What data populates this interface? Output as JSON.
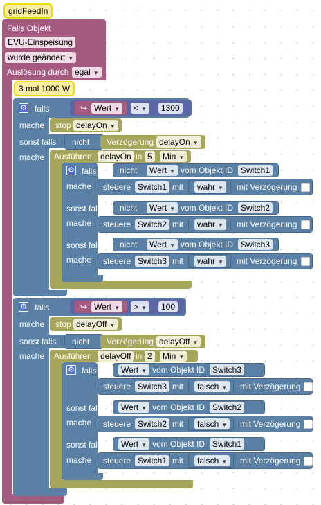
{
  "colors": {
    "event": "#a55b80",
    "control": "#5b80a5",
    "timer": "#a5a55b",
    "value": "#5b67a5",
    "var": "#a55b80"
  },
  "trigger": {
    "comment": "gridFeedIn",
    "title": "Falls Objekt",
    "object": "EVU-Einspeisung",
    "changed": "wurde geändert",
    "trigger_label": "Auslösung durch",
    "trigger_value": "egal"
  },
  "inner_comment": "3 mal 1000 W",
  "labels": {
    "falls": "falls",
    "mache": "mache",
    "sonst_falls": "sonst falls",
    "nicht": "nicht",
    "wert": "Wert",
    "vom_objekt": "vom Objekt ID",
    "steuere": "steuere",
    "mit": "mit",
    "mit_verz": "mit Verzögerung",
    "stop": "stop",
    "verzoegerung": "Verzögerung",
    "ausfuehren": "Ausführen",
    "in": "in",
    "min": "Min"
  },
  "block1": {
    "op": "<",
    "number": "1300",
    "timer": "delayOn",
    "delay": "5",
    "rows": [
      {
        "switch": "Switch1",
        "value": "wahr"
      },
      {
        "switch": "Switch2",
        "value": "wahr"
      },
      {
        "switch": "Switch3",
        "value": "wahr"
      }
    ]
  },
  "block2": {
    "op": ">",
    "number": "100",
    "timer": "delayOff",
    "delay": "2",
    "rows": [
      {
        "switch": "Switch3",
        "value": "falsch"
      },
      {
        "switch": "Switch2",
        "value": "falsch"
      },
      {
        "switch": "Switch1",
        "value": "falsch"
      }
    ]
  }
}
